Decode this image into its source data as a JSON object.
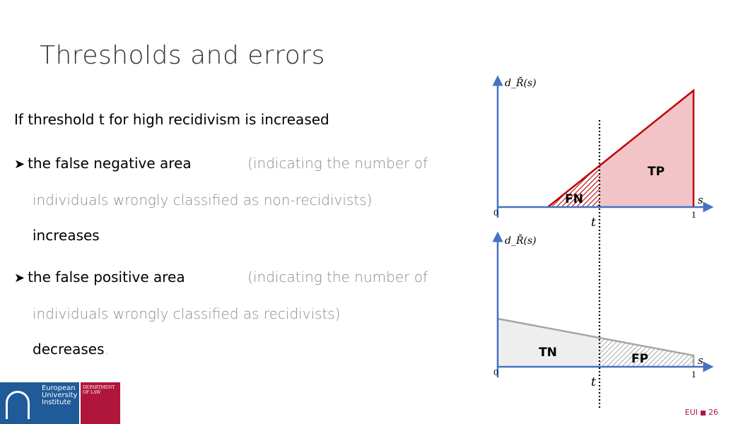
{
  "slide": {
    "title": "Thresholds and errors",
    "intro": "If threshold t for high recidivism is increased",
    "bullet1": {
      "bold": "the false negative area",
      "gray1": "(indicating the number of",
      "gray2": "individuals wrongly classified as non-recidivists)",
      "end": "increases"
    },
    "bullet2": {
      "bold": "the false positive area",
      "gray1": "(indicating the number of",
      "gray2": "individuals wrongly classified as recidivists)",
      "end": "decreases",
      "end_punct": "."
    },
    "footer": {
      "org": "EUI",
      "page": "26"
    },
    "logo": {
      "eui": "European University Institute",
      "dept": "DEPARTMENT OF LAW"
    }
  },
  "diagram": {
    "top": {
      "ylabel": "d_R̄(s)",
      "xlabel": "s",
      "origin": "0",
      "one": "1",
      "threshold": "t",
      "region_fn": "FN",
      "region_tp": "TP"
    },
    "bottom": {
      "ylabel": "d_R̄(s)",
      "xlabel": "s",
      "origin": "0",
      "one": "1",
      "threshold": "t",
      "region_tn": "TN",
      "region_fp": "FP"
    },
    "colors": {
      "axis": "#4472c4",
      "red": "#c00000",
      "pink": "#f2c4c8",
      "gray": "#a6a6a6",
      "lightgray": "#eeeeee"
    }
  }
}
